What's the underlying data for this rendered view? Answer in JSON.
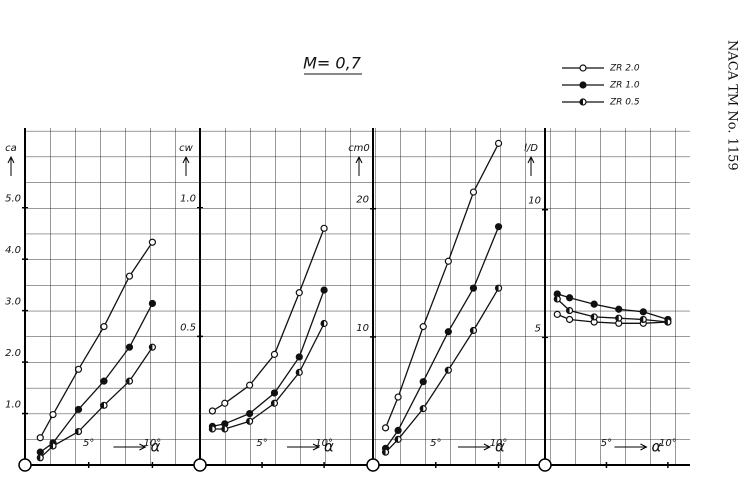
{
  "title": "M= 0,7",
  "note": "NACA TM No. 1159",
  "chart_data": [
    {
      "type": "line",
      "y_label": "ca",
      "x_label": "α",
      "xlim": [
        0,
        13.5
      ],
      "ylim": [
        0,
        6.55
      ],
      "xticks": [
        {
          "value": 5,
          "label": "5°"
        },
        {
          "value": 10,
          "label": "10°"
        }
      ],
      "yticks": [
        {
          "value": 1,
          "label": "1.0"
        },
        {
          "value": 2,
          "label": "2.0"
        },
        {
          "value": 3,
          "label": "3.0"
        },
        {
          "value": 4,
          "label": "4.0"
        },
        {
          "value": 5,
          "label": "5.0"
        }
      ],
      "x": [
        1.2,
        2.2,
        4.2,
        6.2,
        8.2,
        10
      ],
      "series": [
        {
          "name": "ZR 2.0",
          "color": "#111",
          "marker": "open",
          "values": [
            0.53,
            0.98,
            1.86,
            2.69,
            3.67,
            4.33
          ]
        },
        {
          "name": "ZR 1.0",
          "color": "#111",
          "marker": "filled",
          "values": [
            0.25,
            0.43,
            1.08,
            1.63,
            2.29,
            3.14
          ]
        },
        {
          "name": "ZR 0.5",
          "color": "#111",
          "marker": "half",
          "values": [
            0.14,
            0.37,
            0.65,
            1.16,
            1.63,
            2.29
          ]
        }
      ]
    },
    {
      "type": "line",
      "y_label": "cw",
      "x_label": "α",
      "xlim": [
        0,
        13.7
      ],
      "ylim": [
        0,
        1.31
      ],
      "xticks": [
        {
          "value": 5,
          "label": "5°"
        },
        {
          "value": 10,
          "label": "10°"
        }
      ],
      "yticks": [
        0.5,
        {
          "value": 1,
          "label": "1.0"
        }
      ],
      "x": [
        1,
        2,
        4,
        6,
        8,
        10
      ],
      "series": [
        {
          "color": "#111",
          "marker": "open",
          "values": [
            0.21,
            0.24,
            0.31,
            0.43,
            0.67,
            0.92
          ]
        },
        {
          "color": "#111",
          "marker": "filled",
          "values": [
            0.15,
            0.16,
            0.2,
            0.28,
            0.42,
            0.68
          ]
        },
        {
          "color": "#111",
          "marker": "half",
          "values": [
            0.14,
            0.14,
            0.17,
            0.24,
            0.36,
            0.55
          ]
        }
      ]
    },
    {
      "type": "line",
      "y_label": "cm0",
      "x_label": "α",
      "xlim": [
        0,
        13.3
      ],
      "ylim": [
        0,
        26.3
      ],
      "xticks": [
        {
          "value": 5,
          "label": "5°"
        },
        {
          "value": 10,
          "label": "10°"
        }
      ],
      "yticks": [
        10,
        20
      ],
      "x": [
        1,
        2,
        4,
        6,
        8,
        10
      ],
      "series": [
        {
          "color": "#111",
          "marker": "open",
          "values": [
            2.9,
            5.3,
            10.8,
            15.9,
            21.3,
            25.1
          ]
        },
        {
          "color": "#111",
          "marker": "filled",
          "values": [
            1.3,
            2.7,
            6.5,
            10.4,
            13.8,
            18.6
          ]
        },
        {
          "color": "#111",
          "marker": "half",
          "values": [
            1.0,
            2.0,
            4.4,
            7.4,
            10.5,
            13.8
          ]
        }
      ]
    },
    {
      "type": "line",
      "y_label": "l/D",
      "x_label": "α",
      "xlim": [
        0,
        11.8
      ],
      "ylim": [
        0,
        13.2
      ],
      "xticks": [
        {
          "value": 5,
          "label": "5°"
        },
        {
          "value": 10,
          "label": "10°"
        }
      ],
      "yticks": [
        5,
        10
      ],
      "x": [
        1,
        2,
        4,
        6,
        8,
        10
      ],
      "series": [
        {
          "color": "#111",
          "marker": "open",
          "values": [
            5.9,
            5.7,
            5.6,
            5.55,
            5.55,
            5.6
          ]
        },
        {
          "color": "#111",
          "marker": "filled",
          "values": [
            6.7,
            6.55,
            6.3,
            6.1,
            6.0,
            5.7
          ]
        },
        {
          "color": "#111",
          "marker": "half",
          "values": [
            6.5,
            6.05,
            5.8,
            5.75,
            5.7,
            5.6
          ]
        }
      ]
    }
  ]
}
